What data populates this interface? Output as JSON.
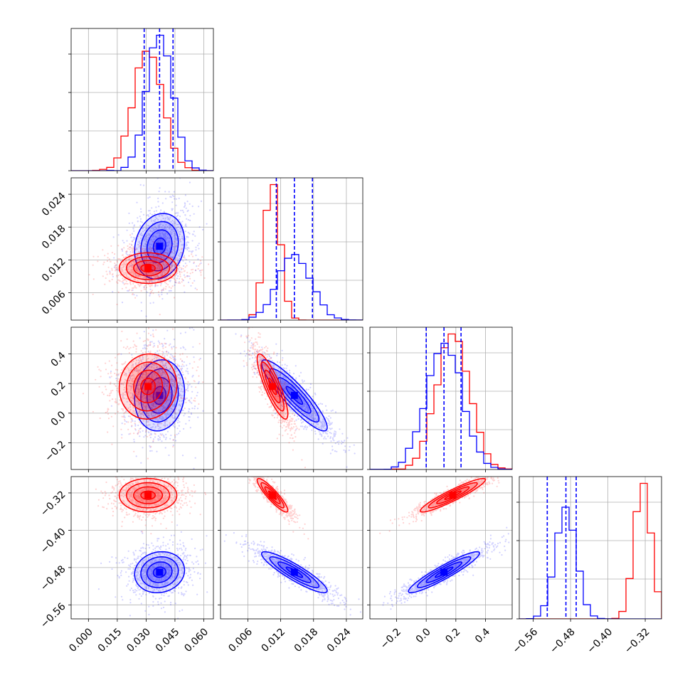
{
  "chart_data": {
    "type": "corner",
    "title": "",
    "parameters": 4,
    "series": [
      {
        "color": "#0000ff",
        "means": [
          0.037,
          0.0145,
          0.12,
          -0.49
        ],
        "sds": [
          0.0065,
          0.003,
          0.12,
          0.022
        ],
        "quantile_lines": [
          [
            0.029,
            0.037,
            0.044
          ],
          [
            0.0112,
            0.0145,
            0.0178
          ],
          [
            0.0,
            0.12,
            0.235
          ],
          [
            -0.53,
            -0.49,
            -0.468
          ]
        ]
      },
      {
        "color": "#ff0000",
        "means": [
          0.031,
          0.0105,
          0.18,
          -0.325
        ],
        "sds": [
          0.0075,
          0.0014,
          0.11,
          0.018
        ]
      }
    ],
    "correlations": {
      "blue": {
        "1_0": 0.15,
        "2_0": 0.1,
        "2_1": -0.9,
        "3_0": 0.1,
        "3_1": -0.9,
        "3_2": 0.93
      },
      "red": {
        "1_0": 0.0,
        "2_0": 0.05,
        "2_1": -0.85,
        "3_0": 0.0,
        "3_1": -0.9,
        "3_2": 0.93
      }
    },
    "axes": [
      {
        "range": [
          -0.009,
          0.065
        ],
        "ticks": [
          0.0,
          0.015,
          0.03,
          0.045,
          0.06
        ],
        "tick_labels": [
          "0.000",
          "0.015",
          "0.030",
          "0.045",
          "0.060"
        ]
      },
      {
        "range": [
          0.001,
          0.027
        ],
        "ticks": [
          0.006,
          0.012,
          0.018,
          0.024
        ],
        "tick_labels": [
          "0.006",
          "0.012",
          "0.018",
          "0.024"
        ]
      },
      {
        "range": [
          -0.38,
          0.58
        ],
        "ticks": [
          -0.2,
          0.0,
          0.2,
          0.4
        ],
        "tick_labels": [
          "−0.2",
          "0.0",
          "0.2",
          "0.4"
        ]
      },
      {
        "range": [
          -0.59,
          -0.285
        ],
        "ticks": [
          -0.56,
          -0.48,
          -0.4,
          -0.32
        ],
        "tick_labels": [
          "−0.56",
          "−0.48",
          "−0.40",
          "−0.32"
        ]
      }
    ],
    "grid": true
  }
}
